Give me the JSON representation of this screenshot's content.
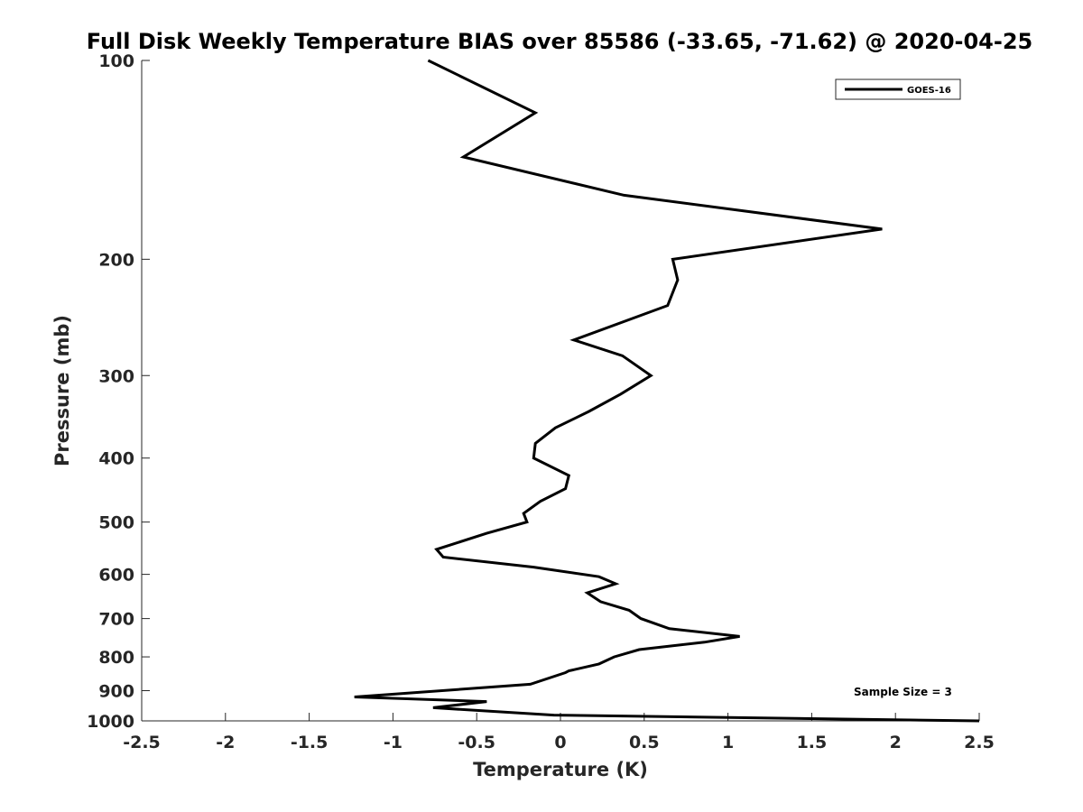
{
  "chart_data": {
    "type": "line",
    "title": "Full Disk Weekly Temperature BIAS over 85586 (-33.65, -71.62) @ 2020-04-25",
    "xlabel": "Temperature (K)",
    "ylabel": "Pressure (mb)",
    "xlim": [
      -2.5,
      2.5
    ],
    "ylim": [
      100,
      1000
    ],
    "y_scale": "log",
    "y_reversed": true,
    "grid": false,
    "legend_position": "top-right",
    "x_ticks": [
      "-2.5",
      "-2",
      "-1.5",
      "-1",
      "-0.5",
      "0",
      "0.5",
      "1",
      "1.5",
      "2",
      "2.5"
    ],
    "y_ticks": [
      "100",
      "200",
      "300",
      "400",
      "500",
      "600",
      "700",
      "800",
      "900",
      "1000"
    ],
    "annotation": "Sample Size = 3",
    "series": [
      {
        "name": "GOES-16",
        "color": "#000000",
        "points": [
          {
            "x": -0.79,
            "p": 100
          },
          {
            "x": -0.15,
            "p": 120
          },
          {
            "x": -0.58,
            "p": 140
          },
          {
            "x": 0.38,
            "p": 160
          },
          {
            "x": 1.92,
            "p": 180
          },
          {
            "x": 0.67,
            "p": 200
          },
          {
            "x": 0.7,
            "p": 215
          },
          {
            "x": 0.64,
            "p": 235
          },
          {
            "x": 0.08,
            "p": 265
          },
          {
            "x": 0.37,
            "p": 280
          },
          {
            "x": 0.54,
            "p": 300
          },
          {
            "x": 0.36,
            "p": 320
          },
          {
            "x": 0.17,
            "p": 340
          },
          {
            "x": -0.03,
            "p": 360
          },
          {
            "x": -0.15,
            "p": 380
          },
          {
            "x": -0.16,
            "p": 400
          },
          {
            "x": 0.05,
            "p": 425
          },
          {
            "x": 0.03,
            "p": 445
          },
          {
            "x": -0.12,
            "p": 465
          },
          {
            "x": -0.22,
            "p": 485
          },
          {
            "x": -0.2,
            "p": 500
          },
          {
            "x": -0.44,
            "p": 520
          },
          {
            "x": -0.74,
            "p": 550
          },
          {
            "x": -0.7,
            "p": 565
          },
          {
            "x": -0.16,
            "p": 585
          },
          {
            "x": 0.23,
            "p": 605
          },
          {
            "x": 0.33,
            "p": 620
          },
          {
            "x": 0.16,
            "p": 640
          },
          {
            "x": 0.24,
            "p": 660
          },
          {
            "x": 0.41,
            "p": 680
          },
          {
            "x": 0.48,
            "p": 700
          },
          {
            "x": 0.65,
            "p": 725
          },
          {
            "x": 1.07,
            "p": 745
          },
          {
            "x": 0.86,
            "p": 760
          },
          {
            "x": 0.47,
            "p": 780
          },
          {
            "x": 0.32,
            "p": 800
          },
          {
            "x": 0.23,
            "p": 820
          },
          {
            "x": 0.05,
            "p": 840
          },
          {
            "x": 0.03,
            "p": 845
          },
          {
            "x": -0.18,
            "p": 880
          },
          {
            "x": -1.23,
            "p": 920
          },
          {
            "x": -0.44,
            "p": 935
          },
          {
            "x": -0.76,
            "p": 955
          },
          {
            "x": -0.04,
            "p": 980
          },
          {
            "x": 2.5,
            "p": 1000
          }
        ]
      }
    ]
  }
}
